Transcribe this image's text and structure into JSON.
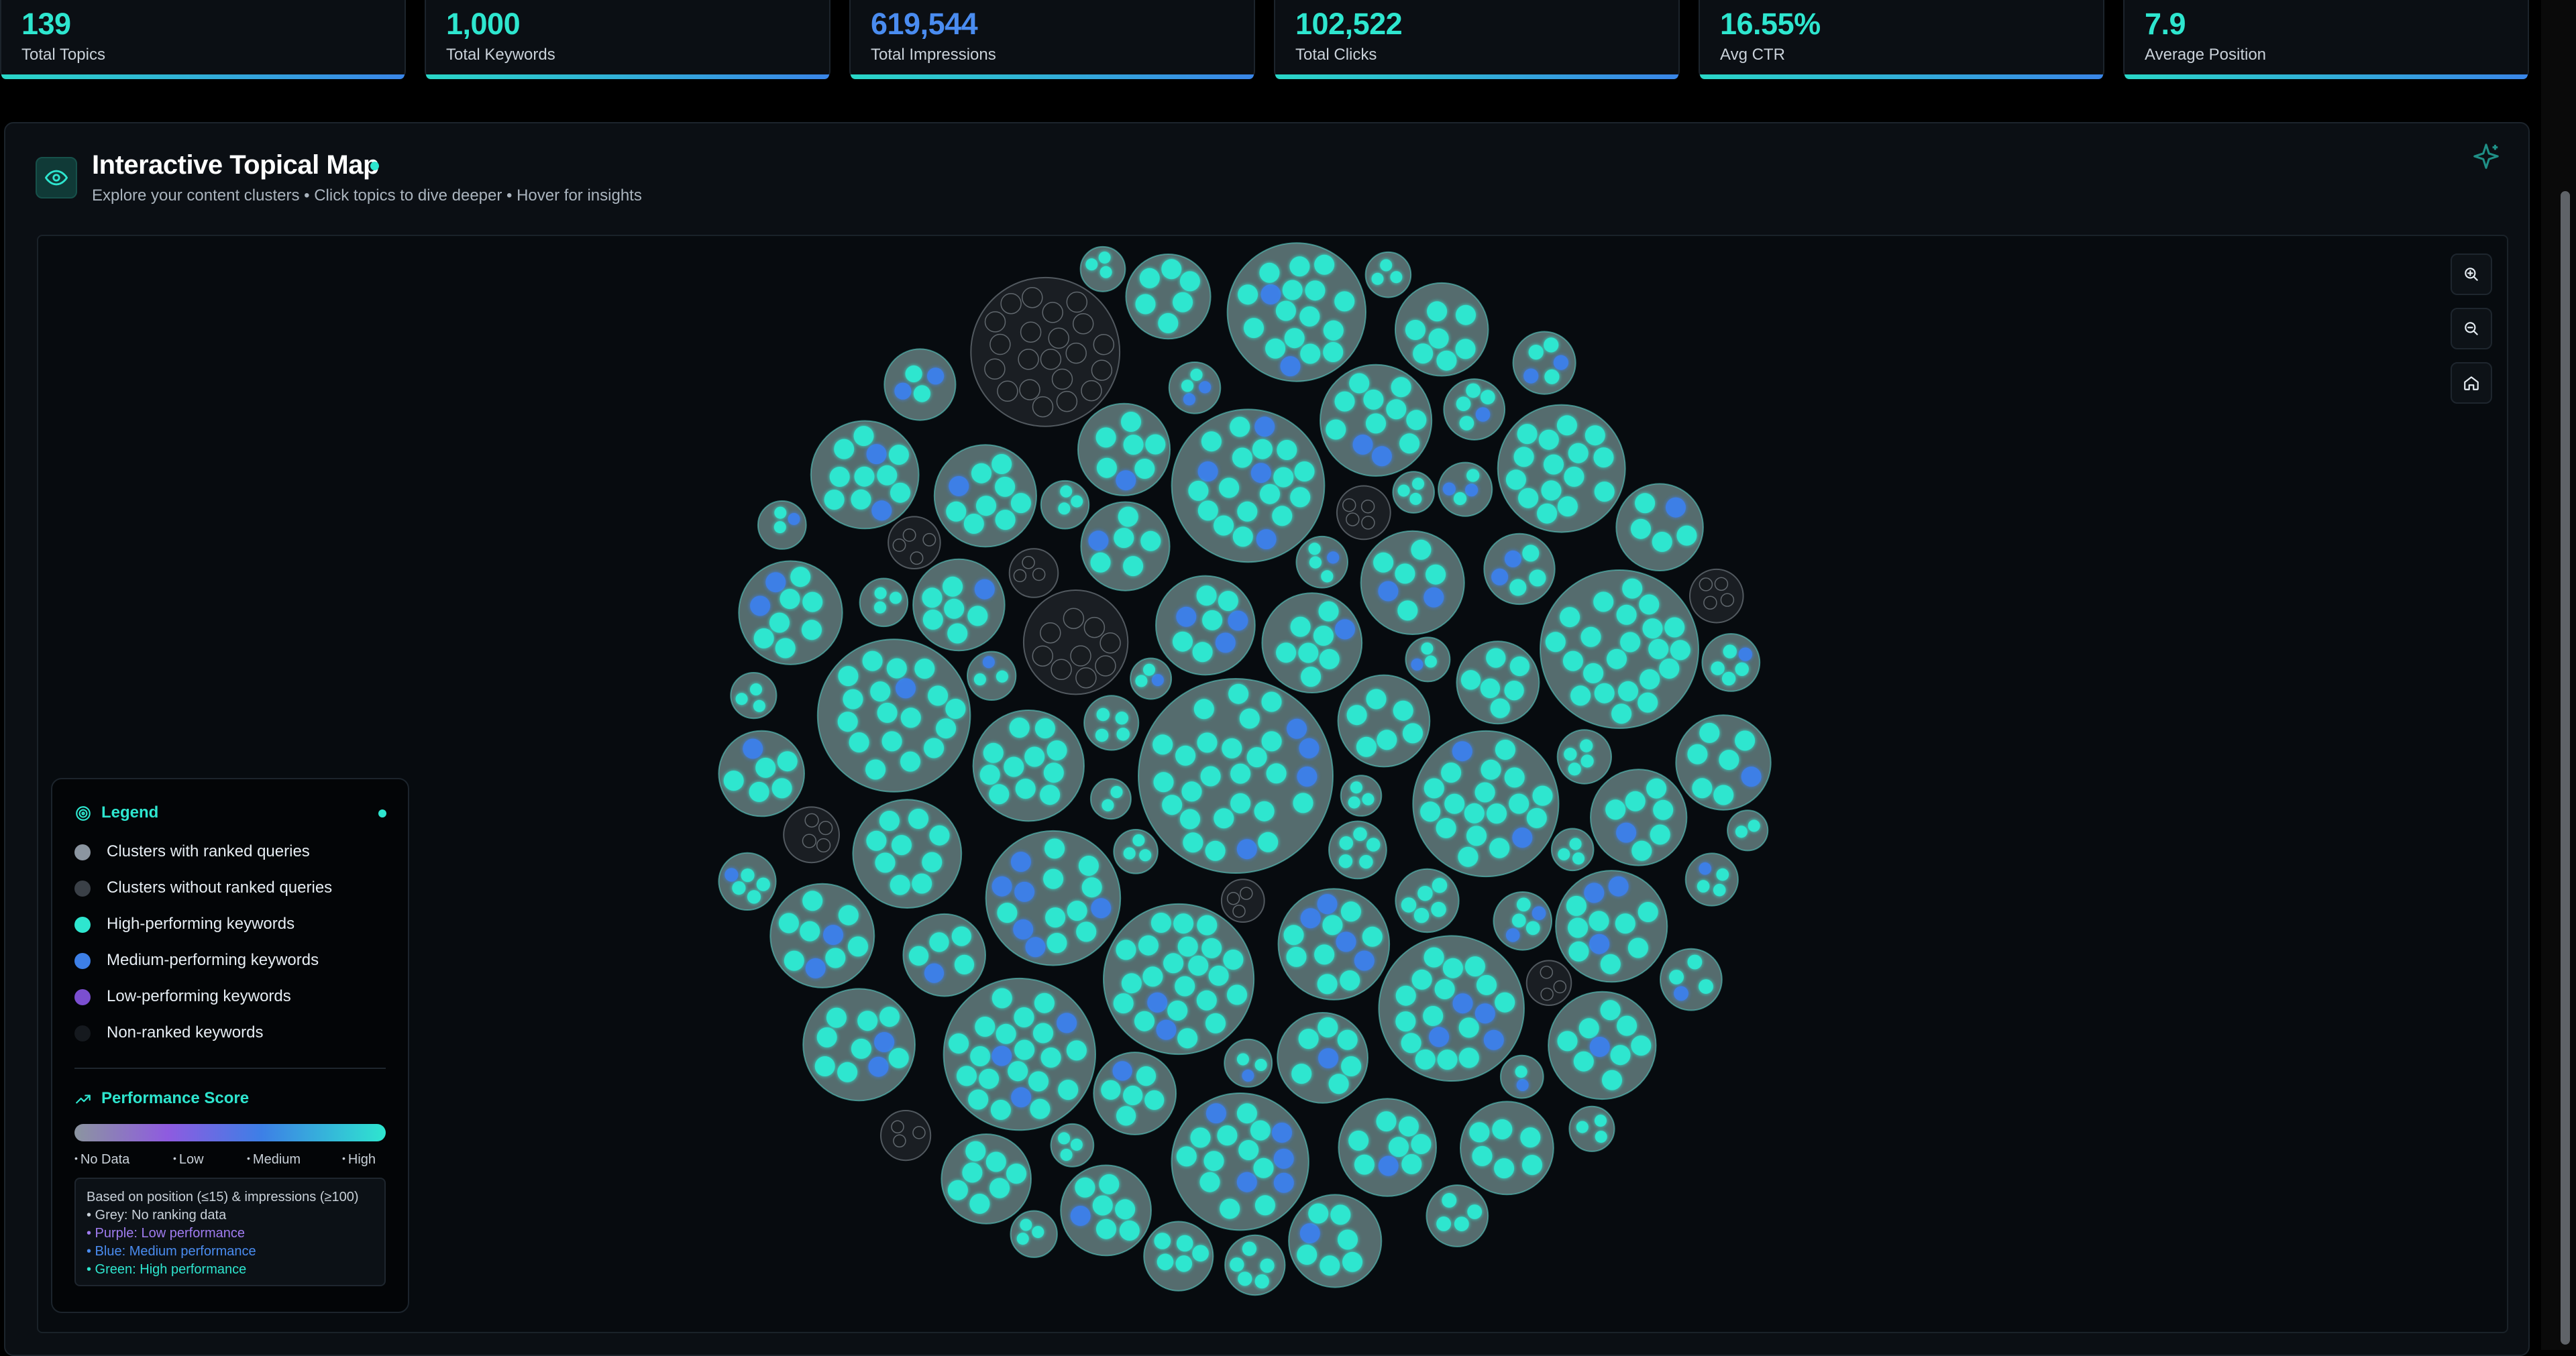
{
  "stats": [
    {
      "value": "139",
      "label": "Total Topics",
      "color": "#2ee6cf"
    },
    {
      "value": "1,000",
      "label": "Total Keywords",
      "color": "#2ee6cf"
    },
    {
      "value": "619,544",
      "label": "Total Impressions",
      "color": "#4a8cf0"
    },
    {
      "value": "102,522",
      "label": "Total Clicks",
      "color": "#2ee6cf"
    },
    {
      "value": "16.55%",
      "label": "Avg CTR",
      "color": "#2ee6cf"
    },
    {
      "value": "7.9",
      "label": "Average Position",
      "color": "#2ee6cf"
    }
  ],
  "panel": {
    "title": "Interactive Topical Map",
    "subtitle": "Explore your content clusters • Click topics to dive deeper • Hover for insights"
  },
  "legend": {
    "title": "Legend",
    "items": [
      {
        "label": "Clusters with ranked queries",
        "color": "#8b95a0"
      },
      {
        "label": "Clusters without ranked queries",
        "color": "#3a4047"
      },
      {
        "label": "High-performing keywords",
        "color": "#2ee6cf"
      },
      {
        "label": "Medium-performing keywords",
        "color": "#3d7fe6"
      },
      {
        "label": "Low-performing keywords",
        "color": "#7b4fd0"
      },
      {
        "label": "Non-ranked keywords",
        "color": "#15191e"
      }
    ],
    "performance_title": "Performance Score",
    "scale_labels": [
      "No Data",
      "Low",
      "Medium",
      "High"
    ],
    "note": {
      "heading": "Based on position (≤15) & impressions (≥100)",
      "lines": [
        {
          "text": "• Grey: No ranking data",
          "color": "#c9d1d9"
        },
        {
          "text": "• Purple: Low performance",
          "color": "#a07cf0"
        },
        {
          "text": "• Blue: Medium performance",
          "color": "#4a8cf0"
        },
        {
          "text": "• Green: High performance",
          "color": "#2ee6cf"
        }
      ]
    }
  },
  "colors": {
    "high": "#2ee6cf",
    "medium": "#3d7fe6",
    "ranked_cluster": "#8b95a0",
    "unranked_cluster": "#3a4047",
    "accent": "#2ee6cf"
  },
  "icons": {
    "panel": "eye-icon",
    "sparkle": "sparkle-icon",
    "zoom_in": "zoom-in-icon",
    "zoom_out": "zoom-out-icon",
    "home": "home-icon",
    "legend": "target-icon",
    "performance": "trending-up-icon"
  }
}
